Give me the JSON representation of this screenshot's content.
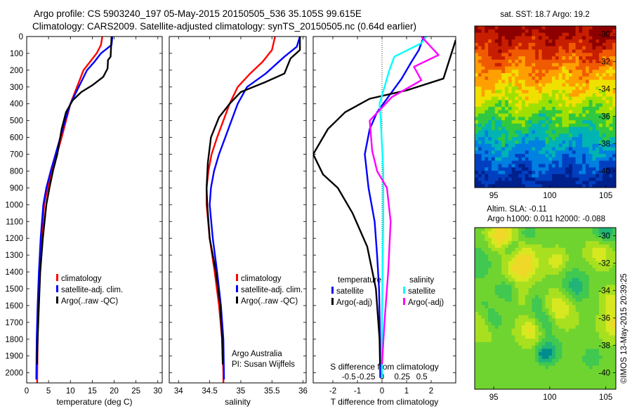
{
  "header": {
    "line1": "Argo profile: CS 5903240_197 05-May-2015 20150505_536 35.105S 99.615E",
    "line2": "Climatology: CARS2009. Satellite-adjusted climatology: synTS_20150505.nc (0.64d earlier)"
  },
  "colors": {
    "climatology": "#ff0000",
    "satellite": "#0000ff",
    "argo": "#000000",
    "satellite_sal": "#00ffff",
    "argo_sal": "#ff00ff"
  },
  "chart_data": [
    {
      "type": "line",
      "panel": "temperature",
      "xlabel": "temperature (deg C)",
      "xlim": [
        0,
        31
      ],
      "ylim": [
        0,
        2060
      ],
      "y_inverted": true,
      "x_ticks": [
        0,
        5,
        10,
        15,
        20,
        25,
        30
      ],
      "y_ticks": [
        0,
        100,
        200,
        300,
        400,
        500,
        600,
        700,
        800,
        900,
        1000,
        1100,
        1200,
        1300,
        1400,
        1500,
        1600,
        1700,
        1800,
        1900,
        2000
      ],
      "legend": {
        "entries": [
          "climatology",
          "satellite-adj. clim.",
          "Argo(..raw -QC)"
        ]
      },
      "series": [
        {
          "name": "climatology",
          "color": "#ff0000",
          "x": [
            17.3,
            17.0,
            16.0,
            14.5,
            13.0,
            11.5,
            10.0,
            9.0,
            8.0,
            6.9,
            5.8,
            4.8,
            4.0,
            3.4,
            2.9,
            2.6,
            2.5,
            2.4
          ],
          "y": [
            0,
            50,
            100,
            150,
            200,
            300,
            400,
            500,
            600,
            700,
            800,
            900,
            1000,
            1200,
            1400,
            1600,
            1800,
            2060
          ]
        },
        {
          "name": "satellite-adj. clim.",
          "color": "#0000ff",
          "x": [
            19.6,
            19.4,
            17.0,
            15.5,
            13.8,
            11.9,
            10.0,
            8.8,
            7.7,
            6.6,
            5.5,
            4.5,
            3.8,
            3.2,
            2.8,
            2.5,
            2.3,
            2.2
          ],
          "y": [
            0,
            50,
            100,
            150,
            200,
            300,
            400,
            500,
            600,
            700,
            800,
            900,
            1000,
            1200,
            1400,
            1600,
            1800,
            2040
          ]
        },
        {
          "name": "Argo(..raw -QC)",
          "color": "#000000",
          "x": [
            19.4,
            19.3,
            19.2,
            18.6,
            18.5,
            17.5,
            15.0,
            12.5,
            10.5,
            9.0,
            8.0,
            7.0,
            6.0,
            5.2,
            4.5,
            3.7,
            3.1,
            2.8,
            2.5,
            2.4,
            2.4
          ],
          "y": [
            0,
            60,
            120,
            140,
            190,
            240,
            290,
            330,
            380,
            450,
            550,
            700,
            800,
            900,
            1000,
            1200,
            1400,
            1600,
            1800,
            1900,
            1950
          ]
        }
      ]
    },
    {
      "type": "line",
      "panel": "salinity",
      "xlabel": "salinity",
      "xlim": [
        33.85,
        36.05
      ],
      "ylim": [
        0,
        2060
      ],
      "y_inverted": true,
      "x_ticks": [
        34,
        34.5,
        35,
        35.5,
        36
      ],
      "legend": {
        "entries": [
          "climatology",
          "satellite-adj. clim.",
          "Argo(..raw -QC)"
        ]
      },
      "annotation": [
        "Argo Australia",
        "PI: Susan Wijffels"
      ],
      "series": [
        {
          "name": "climatology",
          "color": "#ff0000",
          "x": [
            35.55,
            35.5,
            35.35,
            35.15,
            34.95,
            34.82,
            34.72,
            34.62,
            34.53,
            34.48,
            34.45,
            34.45,
            34.5,
            34.58,
            34.65,
            34.7,
            34.72,
            34.72
          ],
          "y": [
            0,
            80,
            150,
            220,
            300,
            400,
            500,
            600,
            700,
            800,
            900,
            1000,
            1200,
            1400,
            1600,
            1800,
            2000,
            2060
          ]
        },
        {
          "name": "satellite-adj. clim.",
          "color": "#0000ff",
          "x": [
            35.95,
            35.9,
            35.7,
            35.4,
            35.1,
            34.95,
            34.85,
            34.75,
            34.65,
            34.57,
            34.52,
            34.5,
            34.55,
            34.62,
            34.68,
            34.72,
            34.73
          ],
          "y": [
            0,
            60,
            120,
            220,
            300,
            400,
            500,
            600,
            700,
            800,
            900,
            1000,
            1200,
            1400,
            1600,
            1800,
            2040
          ]
        },
        {
          "name": "Argo(..raw -QC)",
          "color": "#000000",
          "x": [
            35.95,
            35.95,
            35.8,
            35.7,
            35.4,
            35.0,
            34.82,
            34.65,
            34.52,
            34.47,
            34.45,
            34.46,
            34.5,
            34.6,
            34.67,
            34.7,
            34.71
          ],
          "y": [
            0,
            80,
            130,
            220,
            270,
            330,
            400,
            480,
            600,
            750,
            900,
            1000,
            1200,
            1400,
            1600,
            1800,
            1950
          ]
        }
      ]
    },
    {
      "type": "line",
      "panel": "difference",
      "xlabel": "T difference from climatology",
      "top_axis_label": "S difference from climatology",
      "xlim": [
        -2.8,
        3.0
      ],
      "ylim": [
        0,
        2060
      ],
      "y_inverted": true,
      "x_ticks": [
        -2,
        -1,
        0,
        1,
        2
      ],
      "s_ticks": [
        "-0.5",
        "-0.25",
        "0",
        "0.25",
        "0.5"
      ],
      "legend": {
        "headers": [
          "temperature",
          "salinity"
        ],
        "entries": [
          "satellite",
          "Argo(-adj)",
          "satellite",
          "Argo(-adj)"
        ]
      },
      "series": [
        {
          "name": "temperature satellite",
          "color": "#0000ff",
          "x": [
            1.7,
            1.5,
            1.2,
            0.8,
            0.3,
            -0.2,
            -0.5,
            -0.7,
            -0.55,
            -0.3,
            -0.2,
            -0.12,
            -0.08,
            -0.07
          ],
          "y": [
            0,
            80,
            150,
            250,
            350,
            450,
            550,
            700,
            900,
            1100,
            1300,
            1500,
            1800,
            2030
          ]
        },
        {
          "name": "temperature Argo(-adj)",
          "color": "#000000",
          "x": [
            3.0,
            2.5,
            1.0,
            -0.5,
            -1.5,
            -2.2,
            -2.8,
            -2.4,
            -1.8,
            -1.2,
            -0.6,
            -0.25,
            -0.1,
            -0.08
          ],
          "y": [
            20,
            250,
            320,
            370,
            450,
            550,
            700,
            820,
            900,
            1050,
            1250,
            1500,
            1800,
            1950
          ]
        },
        {
          "name": "salinity satellite",
          "color": "#00ffff",
          "x": [
            1.8,
            1.6,
            0.5,
            0.3,
            0.1,
            -0.1,
            -0.05,
            0.0,
            0.05,
            0.05,
            0.02,
            0.0,
            0.0
          ],
          "y": [
            0,
            40,
            120,
            200,
            300,
            400,
            500,
            650,
            800,
            1100,
            1400,
            1700,
            2030
          ]
        },
        {
          "name": "salinity Argo(-adj)",
          "color": "#ff00ff",
          "x": [
            1.6,
            2.3,
            1.3,
            1.6,
            0.4,
            -0.5,
            -0.4,
            -0.2,
            0.2,
            0.35,
            0.25,
            0.1,
            0.0
          ],
          "y": [
            0,
            110,
            180,
            260,
            360,
            500,
            680,
            800,
            900,
            1100,
            1400,
            1700,
            1950
          ]
        }
      ]
    },
    {
      "type": "heatmap",
      "panel": "sst_map",
      "title": "sat. SST: 18.7 Argo: 19.2",
      "xlim": [
        93.3,
        105.9
      ],
      "ylim": [
        -41.2,
        -29.4
      ],
      "x_ticks": [
        95,
        100,
        105
      ],
      "y_ticks": [
        -30,
        -32,
        -34,
        -36,
        -38,
        -40
      ],
      "colors_north_to_south": [
        "#8c0000",
        "#c81e00",
        "#f05a00",
        "#ffa000",
        "#f0e000",
        "#a0e000",
        "#30c840",
        "#00b4b4",
        "#0080e0",
        "#0040c0",
        "#00208c"
      ]
    },
    {
      "type": "heatmap",
      "panel": "sla_map",
      "title": "Altim. SLA: -0.11",
      "subtitle": "Argo h1000: 0.011 h2000: -0.088",
      "xlim": [
        93.3,
        105.9
      ],
      "ylim": [
        -41.2,
        -29.4
      ],
      "x_ticks": [
        95,
        100,
        105
      ],
      "y_ticks": [
        -30,
        -32,
        -34,
        -36,
        -38,
        -40
      ]
    }
  ],
  "footer": {
    "credit": "©IMOS 13-May-2015 20:39:25"
  }
}
